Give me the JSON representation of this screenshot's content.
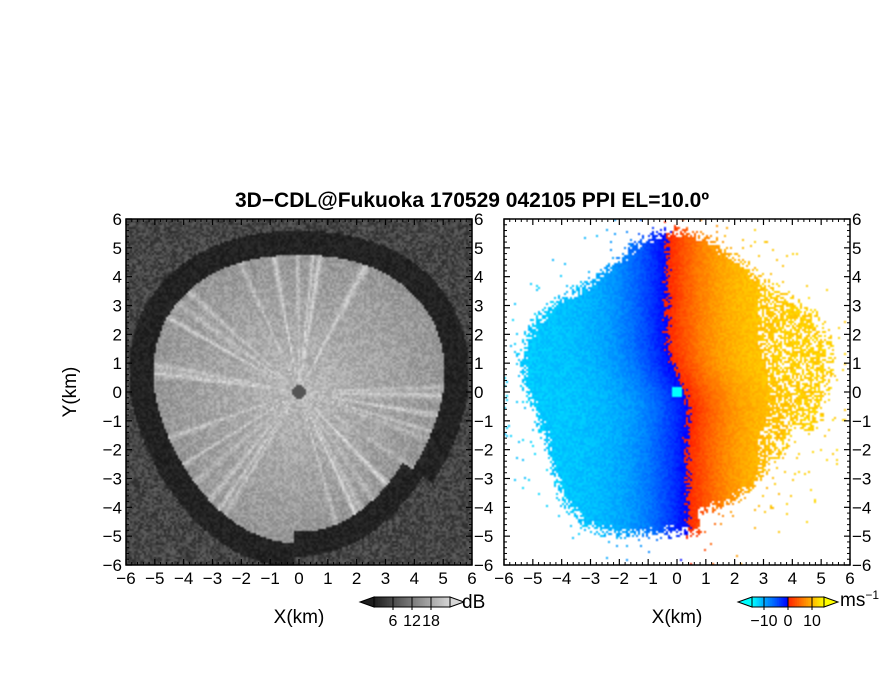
{
  "chart_data": [
    {
      "type": "heatmap",
      "panel": "left",
      "quantity": "SNR",
      "title": "3D−CDL@Fukuoka 170529 042105 PPI EL=10.0º",
      "xlabel": "X(km)",
      "ylabel": "Y(km)",
      "xlim": [
        -6,
        6
      ],
      "ylim": [
        -6,
        6
      ],
      "x_ticks": [
        "−6",
        "−5",
        "−4",
        "−3",
        "−2",
        "−1",
        "0",
        "1",
        "2",
        "3",
        "4",
        "5",
        "6"
      ],
      "y_ticks": [
        "6",
        "5",
        "4",
        "3",
        "2",
        "1",
        "0",
        "−1",
        "−2",
        "−3",
        "−4",
        "−5",
        "−6"
      ],
      "colorscale": "grayscale",
      "colorbar": {
        "unit": "dB",
        "ticks": [
          6,
          12,
          18
        ],
        "tick_labels": [
          "6",
          "12",
          "18"
        ],
        "range": [
          0,
          24
        ]
      },
      "features": {
        "echo_radius_km": 5.0,
        "ring_radius_km": 5.5,
        "center_marker_radius_km": 0.22
      }
    },
    {
      "type": "heatmap",
      "panel": "right",
      "quantity": "Doppler velocity",
      "xlabel": "X(km)",
      "ylabel": "",
      "xlim": [
        -6,
        6
      ],
      "ylim": [
        -6,
        6
      ],
      "x_ticks": [
        "−6",
        "−5",
        "−4",
        "−3",
        "−2",
        "−1",
        "0",
        "1",
        "2",
        "3",
        "4",
        "5",
        "6"
      ],
      "y_ticks": [
        "6",
        "5",
        "4",
        "3",
        "2",
        "1",
        "0",
        "−1",
        "−2",
        "−3",
        "−4",
        "−5",
        "−6"
      ],
      "colorscale": "diverging-blue-red-yellow",
      "colorbar": {
        "unit": "ms−1",
        "unit_base": "ms",
        "unit_exp": "−1",
        "ticks": [
          -10,
          0,
          10
        ],
        "tick_labels": [
          "−10",
          "0",
          "10"
        ],
        "range": [
          -15,
          15
        ]
      },
      "features": {
        "echo_radius_km": 5.2,
        "center_marker_radius_km": 0.2
      }
    }
  ],
  "colors": {
    "background": "#ffffff",
    "gray_dark": "#1e1e1e",
    "gray_light": "#d6d6d6",
    "vel_neg_far": "#00ffff",
    "vel_neg_near": "#0000ff",
    "vel_pos_near": "#ff2000",
    "vel_pos_far": "#ffff00",
    "center_marker_left": "#555555",
    "center_marker_right": "#00ffff"
  }
}
